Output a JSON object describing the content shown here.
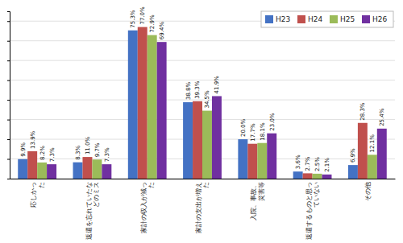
{
  "chart_data": {
    "type": "bar",
    "categories": [
      "応しかっ\nた",
      "返還を忘れていたな\nどのミス",
      "家計の収入が減っ\nた",
      "家計の支出が増え\nた",
      "入院、事故、\n災害等",
      "返還するものと思っ\nていない",
      "その他"
    ],
    "series": [
      {
        "name": "H23",
        "color": "#4472C4",
        "values": [
          9.9,
          8.3,
          75.3,
          38.8,
          20.0,
          3.6,
          6.9
        ],
        "value_labels": [
          "9.9%",
          "8.3%",
          "75.3%",
          "38.8%",
          "20.0%",
          "3.6%",
          "6.9%"
        ]
      },
      {
        "name": "H24",
        "color": "#C0504D",
        "values": [
          13.9,
          11.0,
          77.0,
          39.3,
          17.7,
          2.7,
          28.3
        ],
        "value_labels": [
          "13.9%",
          "11.0%",
          "77.0%",
          "39.3%",
          "17.7%",
          "2.7%",
          "28.3%"
        ]
      },
      {
        "name": "H25",
        "color": "#9BBB59",
        "values": [
          8.2,
          9.7,
          72.9,
          34.5,
          18.1,
          2.5,
          12.1
        ],
        "value_labels": [
          "8.2%",
          "9.7%",
          "72.9%",
          "34.5%",
          "18.1%",
          "2.5%",
          "12.1%"
        ]
      },
      {
        "name": "H26",
        "color": "#7030A0",
        "values": [
          7.3,
          7.3,
          69.4,
          41.9,
          23.0,
          2.1,
          25.4
        ],
        "value_labels": [
          "7.3%",
          "7.3%",
          "69.4%",
          "41.9%",
          "23.0%",
          "2.1%",
          "25.4%"
        ]
      }
    ],
    "ylim": [
      0,
      85
    ],
    "yticks": [
      0,
      10,
      20,
      30,
      40,
      50,
      60,
      70,
      80
    ],
    "grid": true,
    "legend": "upper right",
    "data_labels": true,
    "tick_labels": "x"
  }
}
